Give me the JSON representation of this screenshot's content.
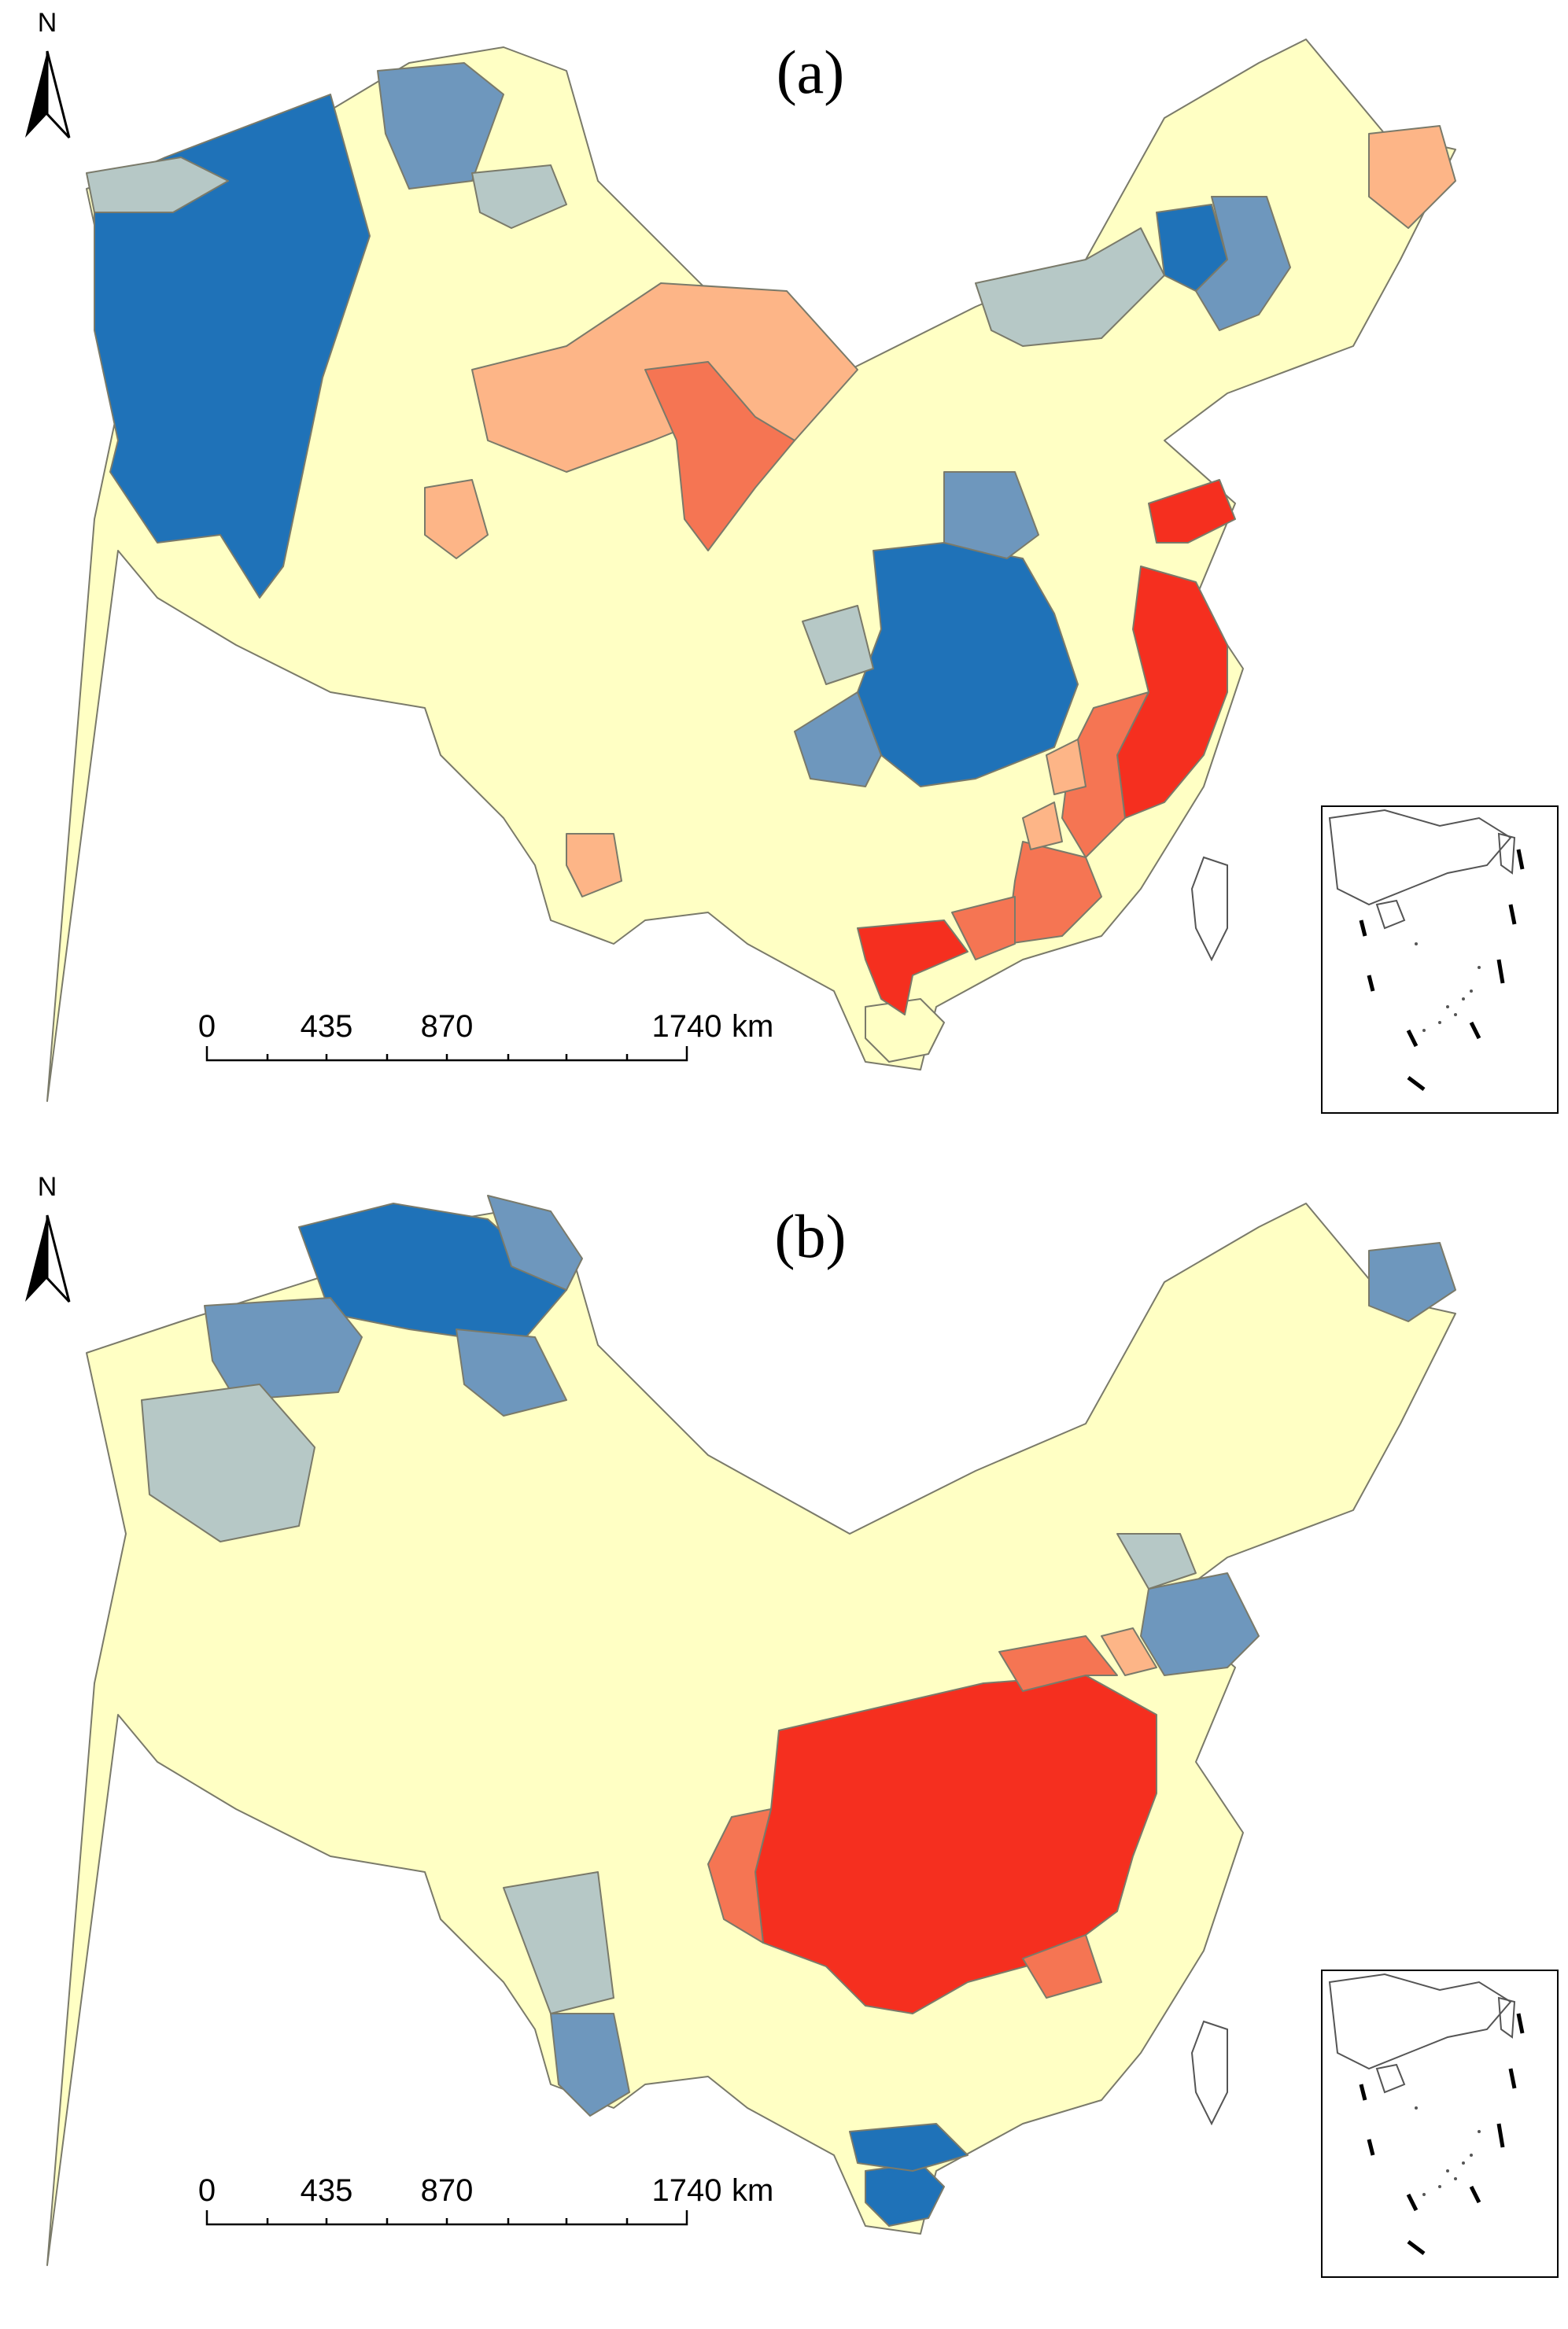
{
  "colors": {
    "low_3": "#1f72b8",
    "low_2": "#6e97bd",
    "low_1": "#b6c8c6",
    "neutral": "#ffffc4",
    "high_1": "#fdb587",
    "high_2": "#f57553",
    "high_3": "#f52f1f",
    "boundary": "#7a7a6a"
  },
  "north_arrow": {
    "label": "N",
    "icon": "north-arrow-icon"
  },
  "scale_bar": {
    "ticks": [
      "0",
      "435",
      "870",
      "1740"
    ],
    "unit": "km"
  },
  "panels": [
    {
      "id": "a",
      "label": "(a)"
    },
    {
      "id": "b",
      "label": "(b)"
    }
  ]
}
